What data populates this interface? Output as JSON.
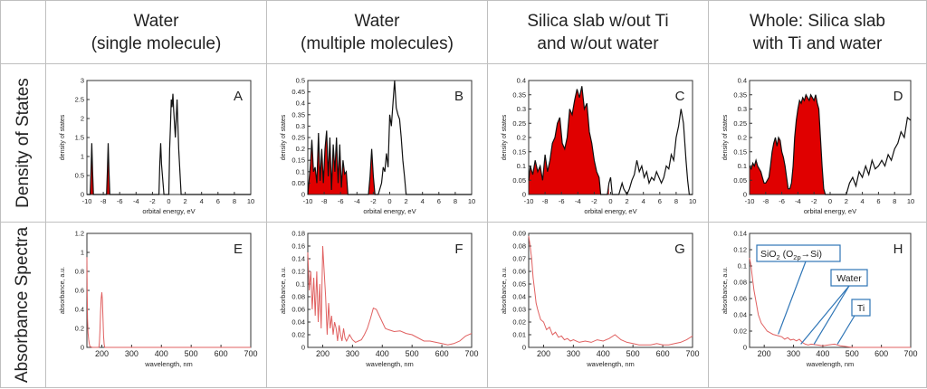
{
  "headers": {
    "col1": {
      "line1": "Water",
      "line2": "(single molecule)"
    },
    "col2": {
      "line1": "Water",
      "line2": "(multiple molecules)"
    },
    "col3": {
      "line1": "Silica slab w/out Ti",
      "line2": "and w/out water"
    },
    "col4": {
      "line1": "Whole: Silica slab",
      "line2": "with Ti and water"
    }
  },
  "rows": {
    "dos": "Density of States",
    "abs": "Absorbance Spectra"
  },
  "chart_data": [
    {
      "id": "A",
      "type": "line",
      "panel_label": "A",
      "xlabel": "orbital energy, eV",
      "ylabel": "density of states",
      "xlim": [
        -10,
        10
      ],
      "ylim": [
        0,
        3
      ],
      "xticks": [
        -10,
        -8,
        -6,
        -4,
        -2,
        0,
        2,
        4,
        6,
        8,
        10
      ],
      "yticks": [
        0,
        0.5,
        1,
        1.5,
        2,
        2.5,
        3
      ],
      "x": [
        -10,
        -9.6,
        -9.5,
        -9.4,
        -9.3,
        -9.2,
        -8,
        -7.6,
        -7.5,
        -7.4,
        -7.3,
        -7.2,
        -1.5,
        -1.2,
        -1.1,
        -1,
        -0.9,
        -0.6,
        0,
        0.1,
        0.2,
        0.3,
        0.4,
        0.5,
        0.6,
        0.8,
        1,
        1.2,
        1.5,
        10
      ],
      "y": [
        0,
        0,
        0.6,
        1.35,
        0.6,
        0,
        0,
        0,
        0.6,
        1.35,
        0.6,
        0,
        0,
        0,
        0.8,
        1.35,
        0.8,
        0,
        0,
        1.2,
        1.8,
        2.5,
        2.3,
        2.65,
        2.2,
        1.5,
        2.5,
        1.2,
        0,
        0
      ],
      "fill_x_max": -7
    },
    {
      "id": "B",
      "type": "line",
      "panel_label": "B",
      "xlabel": "orbital energy, eV",
      "ylabel": "density of states",
      "xlim": [
        -10,
        10
      ],
      "ylim": [
        0,
        0.5
      ],
      "xticks": [
        -10,
        -8,
        -6,
        -4,
        -2,
        0,
        2,
        4,
        6,
        8,
        10
      ],
      "yticks": [
        0,
        0.05,
        0.1,
        0.15,
        0.2,
        0.25,
        0.3,
        0.35,
        0.4,
        0.45,
        0.5
      ],
      "x": [
        -10,
        -9.7,
        -9.5,
        -9.3,
        -9.1,
        -8.9,
        -8.7,
        -8.5,
        -8.3,
        -8.1,
        -7.9,
        -7.7,
        -7.5,
        -7.3,
        -7.1,
        -6.9,
        -6.7,
        -6.5,
        -6.3,
        -6.1,
        -5.9,
        -5.7,
        -5.5,
        -5.3,
        -5.1,
        -3,
        -2.6,
        -2.4,
        -2.2,
        -2,
        -1.8,
        -1.4,
        -1,
        -0.8,
        -0.6,
        -0.4,
        -0.2,
        0,
        0.2,
        0.4,
        0.6,
        0.8,
        1,
        1.2,
        1.4,
        1.6,
        1.8,
        2,
        10
      ],
      "y": [
        0,
        0.12,
        0.24,
        0.1,
        0.12,
        0.05,
        0.27,
        0.06,
        0.2,
        0.05,
        0.2,
        0.28,
        0.08,
        0.25,
        0.02,
        0.22,
        0.1,
        0.25,
        0.05,
        0.22,
        0.03,
        0.15,
        0.09,
        0.1,
        0,
        0,
        0,
        0.08,
        0.2,
        0.08,
        0,
        0,
        0.05,
        0.12,
        0.1,
        0.18,
        0.12,
        0.35,
        0.3,
        0.4,
        0.5,
        0.38,
        0.35,
        0.33,
        0.25,
        0.15,
        0.08,
        0,
        0
      ],
      "fill_x_max": -1.8
    },
    {
      "id": "C",
      "type": "line",
      "panel_label": "C",
      "xlabel": "orbital energy, eV",
      "ylabel": "density of states",
      "xlim": [
        -10,
        10
      ],
      "ylim": [
        0,
        0.4
      ],
      "xticks": [
        -10,
        -8,
        -6,
        -4,
        -2,
        0,
        2,
        4,
        6,
        8,
        10
      ],
      "yticks": [
        0,
        0.05,
        0.1,
        0.15,
        0.2,
        0.25,
        0.3,
        0.35,
        0.4
      ],
      "x": [
        -10,
        -9.8,
        -9.5,
        -9.2,
        -8.9,
        -8.6,
        -8.3,
        -8,
        -7.7,
        -7.4,
        -7.1,
        -6.8,
        -6.5,
        -6.2,
        -5.9,
        -5.6,
        -5.3,
        -5,
        -4.7,
        -4.4,
        -4.1,
        -3.8,
        -3.5,
        -3.2,
        -2.9,
        -2.6,
        -2.3,
        -2,
        -1.7,
        -1.4,
        -1.2,
        -0.4,
        -0.2,
        0,
        0.2,
        1,
        1.4,
        1.6,
        2,
        2.3,
        2.6,
        2.9,
        3.2,
        3.5,
        3.8,
        4.1,
        4.4,
        4.7,
        5,
        5.3,
        5.6,
        5.9,
        6.2,
        6.5,
        6.8,
        7.1,
        7.4,
        7.7,
        8,
        8.3,
        8.6,
        8.9,
        9.2,
        9.4,
        9.6,
        10
      ],
      "y": [
        0.05,
        0.1,
        0.07,
        0.12,
        0.08,
        0.1,
        0.05,
        0.14,
        0.08,
        0.12,
        0.18,
        0.2,
        0.25,
        0.27,
        0.18,
        0.16,
        0.2,
        0.3,
        0.28,
        0.33,
        0.37,
        0.34,
        0.38,
        0.3,
        0.32,
        0.22,
        0.18,
        0.12,
        0.08,
        0.06,
        0,
        0,
        0.04,
        0.06,
        0,
        0,
        0.04,
        0.02,
        0,
        0.02,
        0.05,
        0.07,
        0.12,
        0.08,
        0.1,
        0.06,
        0.08,
        0.04,
        0.06,
        0.05,
        0.08,
        0.06,
        0.04,
        0.06,
        0.1,
        0.09,
        0.14,
        0.12,
        0.2,
        0.24,
        0.3,
        0.25,
        0.12,
        0.05,
        0,
        0
      ],
      "fill_x_max": -0.2
    },
    {
      "id": "D",
      "type": "line",
      "panel_label": "D",
      "xlabel": "orbital energy, eV",
      "ylabel": "density of states",
      "xlim": [
        -10,
        10
      ],
      "ylim": [
        0,
        0.4
      ],
      "xticks": [
        -10,
        -8,
        -6,
        -4,
        -2,
        0,
        2,
        4,
        6,
        8,
        10
      ],
      "yticks": [
        0,
        0.05,
        0.1,
        0.15,
        0.2,
        0.25,
        0.3,
        0.35,
        0.4
      ],
      "x": [
        -10,
        -9.8,
        -9.6,
        -9.4,
        -9.2,
        -9,
        -8.8,
        -8.6,
        -8.4,
        -8.2,
        -8,
        -7.8,
        -7.6,
        -7.4,
        -7.2,
        -7,
        -6.8,
        -6.6,
        -6.4,
        -6.2,
        -6,
        -5.8,
        -5.6,
        -5.4,
        -5.2,
        -5,
        -4.8,
        -4.6,
        -4.4,
        -4.2,
        -4,
        -3.8,
        -3.6,
        -3.4,
        -3.2,
        -3,
        -2.8,
        -2.6,
        -2.4,
        -2.2,
        -2,
        -1.8,
        -1.6,
        -1.4,
        -1.2,
        -1,
        -0.8,
        -0.6,
        2,
        2.4,
        2.8,
        3.2,
        3.6,
        4,
        4.4,
        4.8,
        5.2,
        5.6,
        6,
        6.4,
        6.8,
        7.2,
        7.6,
        8,
        8.4,
        8.8,
        9.2,
        9.6,
        10
      ],
      "y": [
        0.1,
        0.09,
        0.11,
        0.1,
        0.12,
        0.1,
        0.09,
        0.08,
        0.06,
        0.04,
        0.04,
        0.05,
        0.06,
        0.1,
        0.15,
        0.18,
        0.2,
        0.17,
        0.2,
        0.19,
        0.15,
        0.13,
        0.1,
        0.06,
        0.02,
        0.02,
        0.04,
        0.1,
        0.2,
        0.26,
        0.3,
        0.33,
        0.32,
        0.34,
        0.33,
        0.35,
        0.34,
        0.33,
        0.35,
        0.34,
        0.33,
        0.35,
        0.32,
        0.3,
        0.2,
        0.1,
        0.02,
        0,
        0,
        0.04,
        0.06,
        0.03,
        0.08,
        0.06,
        0.1,
        0.07,
        0.12,
        0.09,
        0.1,
        0.12,
        0.1,
        0.14,
        0.12,
        0.16,
        0.18,
        0.22,
        0.2,
        0.27,
        0.26
      ],
      "fill_x_max": -0.6
    },
    {
      "id": "E",
      "type": "line",
      "panel_label": "E",
      "xlabel": "wavelength, nm",
      "ylabel": "absorbance, a.u.",
      "xlim": [
        150,
        700
      ],
      "ylim": [
        0,
        1.2
      ],
      "xticks": [
        200,
        300,
        400,
        500,
        600,
        700
      ],
      "yticks": [
        0,
        0.2,
        0.4,
        0.6,
        0.8,
        1,
        1.2
      ],
      "x": [
        150,
        151,
        152,
        154,
        156,
        158,
        160,
        164,
        168,
        190,
        192,
        194,
        196,
        198,
        200,
        202,
        204,
        206,
        208,
        210,
        700
      ],
      "y": [
        0.95,
        0.6,
        0.3,
        0.15,
        0.08,
        0.04,
        0.01,
        0.005,
        0,
        0,
        0.05,
        0.2,
        0.38,
        0.52,
        0.58,
        0.5,
        0.3,
        0.12,
        0.03,
        0,
        0
      ]
    },
    {
      "id": "F",
      "type": "line",
      "panel_label": "F",
      "xlabel": "wavelength, nm",
      "ylabel": "absorbance, a.u.",
      "xlim": [
        150,
        700
      ],
      "ylim": [
        0,
        0.18
      ],
      "xticks": [
        200,
        300,
        400,
        500,
        600,
        700
      ],
      "yticks": [
        0,
        0.02,
        0.04,
        0.06,
        0.08,
        0.1,
        0.12,
        0.14,
        0.16,
        0.18
      ],
      "x": [
        150,
        155,
        160,
        165,
        170,
        175,
        180,
        185,
        190,
        195,
        200,
        205,
        210,
        215,
        220,
        225,
        230,
        235,
        240,
        245,
        250,
        255,
        260,
        265,
        270,
        275,
        280,
        290,
        300,
        310,
        320,
        330,
        340,
        350,
        360,
        370,
        380,
        390,
        400,
        410,
        420,
        440,
        460,
        480,
        500,
        520,
        540,
        560,
        580,
        600,
        620,
        640,
        660,
        680,
        700
      ],
      "y": [
        0.15,
        0.09,
        0.12,
        0.06,
        0.11,
        0.05,
        0.12,
        0.04,
        0.1,
        0.03,
        0.16,
        0.12,
        0.08,
        0.02,
        0.07,
        0.03,
        0.05,
        0.02,
        0.04,
        0.03,
        0.01,
        0.035,
        0.02,
        0.01,
        0.03,
        0.015,
        0.01,
        0.02,
        0.012,
        0.008,
        0.01,
        0.012,
        0.02,
        0.03,
        0.045,
        0.062,
        0.06,
        0.05,
        0.04,
        0.03,
        0.028,
        0.025,
        0.026,
        0.022,
        0.02,
        0.015,
        0.01,
        0.01,
        0.008,
        0.006,
        0.004,
        0.006,
        0.01,
        0.018,
        0.022
      ]
    },
    {
      "id": "G",
      "type": "line",
      "panel_label": "G",
      "xlabel": "wavelength, nm",
      "ylabel": "absorbance, a.u.",
      "xlim": [
        150,
        700
      ],
      "ylim": [
        0,
        0.09
      ],
      "xticks": [
        200,
        300,
        400,
        500,
        600,
        700
      ],
      "yticks": [
        0,
        0.01,
        0.02,
        0.03,
        0.04,
        0.05,
        0.06,
        0.07,
        0.08,
        0.09
      ],
      "x": [
        150,
        155,
        160,
        165,
        170,
        175,
        180,
        185,
        190,
        200,
        210,
        220,
        230,
        240,
        250,
        260,
        270,
        280,
        290,
        300,
        320,
        340,
        360,
        380,
        400,
        420,
        440,
        460,
        480,
        500,
        520,
        540,
        560,
        580,
        600,
        620,
        640,
        660,
        680,
        700
      ],
      "y": [
        0.088,
        0.08,
        0.07,
        0.055,
        0.045,
        0.035,
        0.03,
        0.026,
        0.022,
        0.02,
        0.014,
        0.016,
        0.01,
        0.012,
        0.008,
        0.009,
        0.006,
        0.007,
        0.005,
        0.006,
        0.004,
        0.005,
        0.004,
        0.006,
        0.005,
        0.007,
        0.01,
        0.006,
        0.004,
        0.003,
        0.002,
        0.002,
        0.002,
        0.003,
        0.002,
        0.002,
        0.003,
        0.004,
        0.006,
        0.009
      ]
    },
    {
      "id": "H",
      "type": "line",
      "panel_label": "H",
      "xlabel": "wavelength, nm",
      "ylabel": "absorbance, a.u.",
      "xlim": [
        150,
        700
      ],
      "ylim": [
        0,
        0.14
      ],
      "xticks": [
        200,
        300,
        400,
        500,
        600,
        700
      ],
      "yticks": [
        0,
        0.02,
        0.04,
        0.06,
        0.08,
        0.1,
        0.12,
        0.14
      ],
      "x": [
        150,
        155,
        160,
        165,
        170,
        175,
        180,
        185,
        190,
        200,
        210,
        220,
        230,
        240,
        250,
        260,
        270,
        280,
        290,
        300,
        310,
        320,
        330,
        340,
        350,
        360,
        380,
        400,
        420,
        440,
        460,
        480,
        500,
        520,
        540,
        560,
        580,
        600,
        620,
        640,
        660,
        680,
        700
      ],
      "y": [
        0.11,
        0.1,
        0.085,
        0.07,
        0.06,
        0.05,
        0.04,
        0.035,
        0.03,
        0.025,
        0.02,
        0.018,
        0.016,
        0.015,
        0.014,
        0.013,
        0.01,
        0.012,
        0.009,
        0.01,
        0.008,
        0.01,
        0.006,
        0.004,
        0.003,
        0.004,
        0.003,
        0.002,
        0.003,
        0.004,
        0.002,
        0.001,
        0,
        0,
        0,
        0,
        0,
        0,
        0,
        0,
        0,
        0,
        0
      ],
      "annotations": [
        {
          "text": "SiO",
          "sub1": "2",
          "mid": " (O",
          "sub2": "2p",
          "tail": "→Si)",
          "target_x": 248,
          "target_y": 0.014
        },
        {
          "text": "Water",
          "target_x": [
            325,
            370
          ]
        },
        {
          "text": "Ti",
          "target_x": 450
        }
      ]
    }
  ]
}
